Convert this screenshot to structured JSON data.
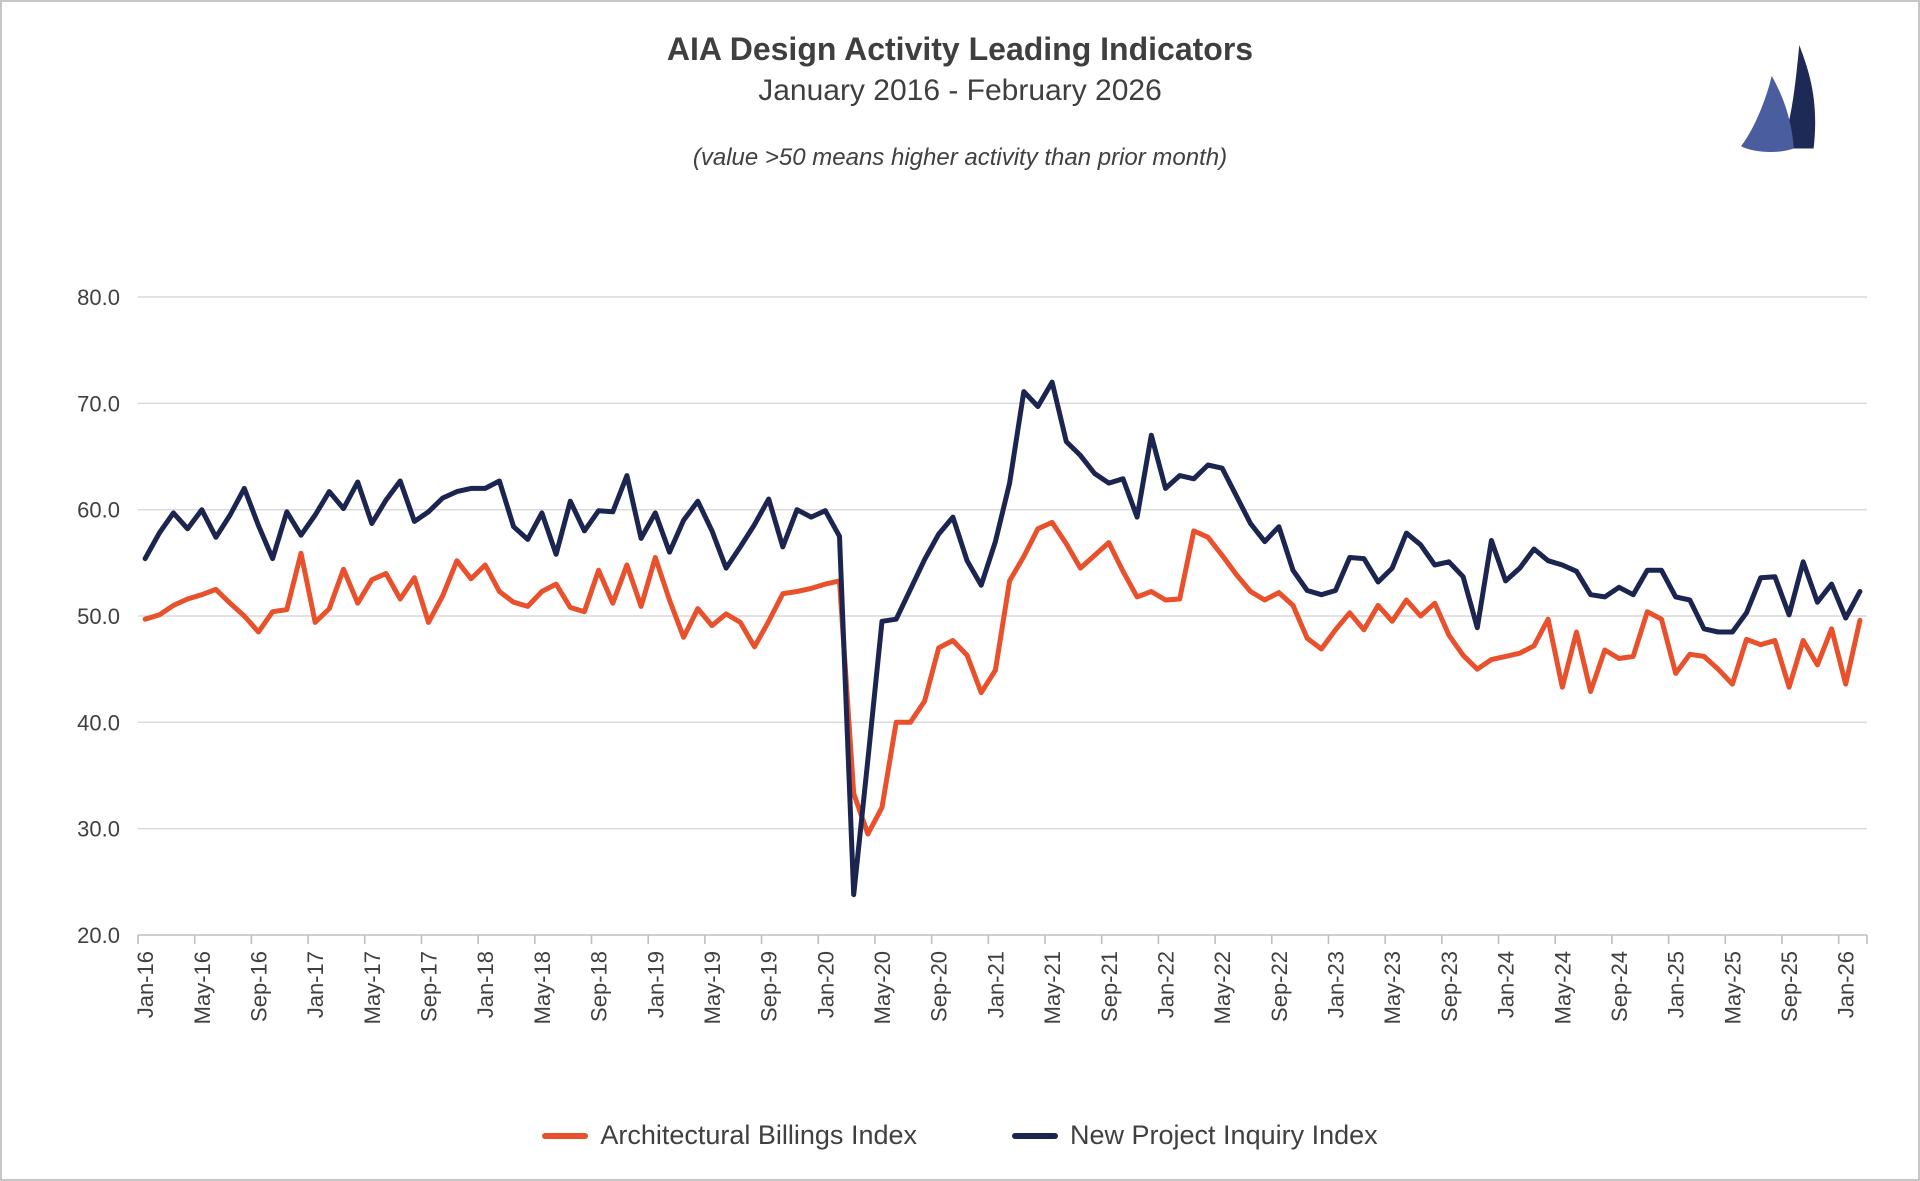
{
  "header": {
    "title": "AIA Design Activity Leading Indicators",
    "subtitle": "January 2016 - February 2026",
    "note": "(value >50 means higher activity than prior month)"
  },
  "logo": {
    "name": "twin-sails-logo",
    "left_sail_color": "#4a5d9e",
    "right_sail_color": "#1e2a56"
  },
  "legend": {
    "items": [
      {
        "label": "Architectural Billings Index",
        "color": "#e8512b"
      },
      {
        "label": "New Project Inquiry Index",
        "color": "#1b2550"
      }
    ]
  },
  "chart_data": {
    "type": "line",
    "title": "AIA Design Activity Leading Indicators",
    "xlabel": "",
    "ylabel": "",
    "ylim": [
      20,
      80
    ],
    "y_tick_labels": [
      "20.0",
      "30.0",
      "40.0",
      "50.0",
      "60.0",
      "70.0",
      "80.0"
    ],
    "x_tick_every": 4,
    "grid": true,
    "legend_position": "bottom",
    "categories": [
      "Jan-16",
      "Feb-16",
      "Mar-16",
      "Apr-16",
      "May-16",
      "Jun-16",
      "Jul-16",
      "Aug-16",
      "Sep-16",
      "Oct-16",
      "Nov-16",
      "Dec-16",
      "Jan-17",
      "Feb-17",
      "Mar-17",
      "Apr-17",
      "May-17",
      "Jun-17",
      "Jul-17",
      "Aug-17",
      "Sep-17",
      "Oct-17",
      "Nov-17",
      "Dec-17",
      "Jan-18",
      "Feb-18",
      "Mar-18",
      "Apr-18",
      "May-18",
      "Jun-18",
      "Jul-18",
      "Aug-18",
      "Sep-18",
      "Oct-18",
      "Nov-18",
      "Dec-18",
      "Jan-19",
      "Feb-19",
      "Mar-19",
      "Apr-19",
      "May-19",
      "Jun-19",
      "Jul-19",
      "Aug-19",
      "Sep-19",
      "Oct-19",
      "Nov-19",
      "Dec-19",
      "Jan-20",
      "Feb-20",
      "Mar-20",
      "Apr-20",
      "May-20",
      "Jun-20",
      "Jul-20",
      "Aug-20",
      "Sep-20",
      "Oct-20",
      "Nov-20",
      "Dec-20",
      "Jan-21",
      "Feb-21",
      "Mar-21",
      "Apr-21",
      "May-21",
      "Jun-21",
      "Jul-21",
      "Aug-21",
      "Sep-21",
      "Oct-21",
      "Nov-21",
      "Dec-21",
      "Jan-22",
      "Feb-22",
      "Mar-22",
      "Apr-22",
      "May-22",
      "Jun-22",
      "Jul-22",
      "Aug-22",
      "Sep-22",
      "Oct-22",
      "Nov-22",
      "Dec-22",
      "Jan-23",
      "Feb-23",
      "Mar-23",
      "Apr-23",
      "May-23",
      "Jun-23",
      "Jul-23",
      "Aug-23",
      "Sep-23",
      "Oct-23",
      "Nov-23",
      "Dec-23",
      "Jan-24",
      "Feb-24",
      "Mar-24",
      "Apr-24",
      "May-24",
      "Jun-24",
      "Jul-24",
      "Aug-24",
      "Sep-24",
      "Oct-24",
      "Nov-24",
      "Dec-24",
      "Jan-25",
      "Feb-25",
      "Mar-25",
      "Apr-25",
      "May-25",
      "Jun-25",
      "Jul-25",
      "Aug-25",
      "Sep-25",
      "Oct-25",
      "Nov-25",
      "Dec-25",
      "Jan-26",
      "Feb-26"
    ],
    "series": [
      {
        "name": "Architectural Billings Index",
        "color": "#e8512b",
        "values": [
          49.7,
          50.1,
          51.0,
          51.6,
          52.0,
          52.5,
          51.2,
          50.0,
          48.5,
          50.4,
          50.6,
          55.9,
          49.4,
          50.7,
          54.4,
          51.2,
          53.4,
          54.0,
          51.6,
          53.6,
          49.4,
          51.9,
          55.2,
          53.5,
          54.8,
          52.3,
          51.3,
          50.9,
          52.3,
          53.0,
          50.8,
          50.4,
          54.3,
          51.2,
          54.8,
          50.9,
          55.5,
          51.5,
          48.0,
          50.7,
          49.1,
          50.2,
          49.4,
          47.1,
          49.5,
          52.1,
          52.3,
          52.6,
          53.0,
          53.3,
          33.3,
          29.5,
          32.0,
          40.0,
          40.0,
          42.0,
          47.0,
          47.7,
          46.3,
          42.8,
          44.9,
          53.3,
          55.6,
          58.2,
          58.8,
          56.8,
          54.5,
          55.7,
          56.9,
          54.2,
          51.8,
          52.3,
          51.5,
          51.6,
          58.0,
          57.4,
          55.7,
          53.9,
          52.3,
          51.5,
          52.2,
          51.0,
          47.9,
          46.9,
          48.7,
          50.3,
          48.7,
          51.0,
          49.5,
          51.5,
          50.0,
          51.2,
          48.2,
          46.3,
          45.0,
          45.9,
          46.2,
          46.5,
          47.2,
          49.7,
          43.3,
          48.5,
          42.9,
          46.8,
          46.0,
          46.2,
          50.4,
          49.7,
          44.6,
          46.4,
          46.2,
          45.0,
          43.6,
          47.8,
          47.3,
          47.7,
          43.3,
          47.7,
          45.4,
          48.8,
          43.6,
          49.6
        ]
      },
      {
        "name": "New Project Inquiry Index",
        "color": "#1b2550",
        "values": [
          55.4,
          57.8,
          59.7,
          58.2,
          60.0,
          57.4,
          59.5,
          62.0,
          58.5,
          55.4,
          59.8,
          57.6,
          59.5,
          61.7,
          60.1,
          62.6,
          58.7,
          60.9,
          62.7,
          58.9,
          59.8,
          61.1,
          61.7,
          62.0,
          62.0,
          62.7,
          58.4,
          57.2,
          59.7,
          55.8,
          60.8,
          58.0,
          59.9,
          59.8,
          63.2,
          57.3,
          59.7,
          56.0,
          59.0,
          60.8,
          58.0,
          54.5,
          56.5,
          58.6,
          61.0,
          56.5,
          60.0,
          59.3,
          59.9,
          57.5,
          23.8,
          36.5,
          49.5,
          49.7,
          52.5,
          55.3,
          57.7,
          59.3,
          55.2,
          52.9,
          57.0,
          62.5,
          71.1,
          69.7,
          72.0,
          66.4,
          65.1,
          63.4,
          62.5,
          62.9,
          59.3,
          67.0,
          62.0,
          63.2,
          62.9,
          64.2,
          63.9,
          61.3,
          58.7,
          57.0,
          58.4,
          54.3,
          52.4,
          52.0,
          52.4,
          55.5,
          55.4,
          53.2,
          54.5,
          57.8,
          56.7,
          54.8,
          55.1,
          53.7,
          48.9,
          57.1,
          53.3,
          54.5,
          56.3,
          55.2,
          54.8,
          54.2,
          52.0,
          51.8,
          52.7,
          52.0,
          54.3,
          54.3,
          51.8,
          51.5,
          48.8,
          48.5,
          48.5,
          50.3,
          53.6,
          53.7,
          50.1,
          55.1,
          51.3,
          53.0,
          49.8,
          52.3
        ]
      }
    ]
  }
}
